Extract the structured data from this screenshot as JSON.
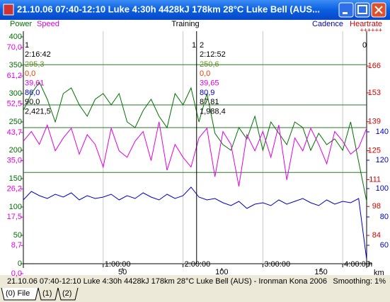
{
  "window": {
    "title": "21.10.06 07:40-12:10 Luke 4:30h 4428kJ 178km 28°C Luke Bell (AUS..."
  },
  "chart_data": {
    "type": "line",
    "title": "Training",
    "x": [
      0,
      0.1,
      0.2,
      0.3,
      0.4,
      0.5,
      0.6,
      0.7,
      0.8,
      0.9,
      1,
      1.1,
      1.2,
      1.3,
      1.4,
      1.5,
      1.6,
      1.7,
      1.8,
      1.9,
      2,
      2.1,
      2.2,
      2.3,
      2.4,
      2.5,
      2.6,
      2.7,
      2.8,
      2.9,
      3,
      3.1,
      3.2,
      3.3,
      3.4,
      3.5,
      3.6,
      3.7,
      3.8,
      3.9,
      4,
      4.1,
      4.2,
      4.3
    ],
    "series": [
      {
        "name": "Power",
        "color": "#007000",
        "axis": "y",
        "values": [
          270,
          300,
          320,
          290,
          250,
          300,
          310,
          280,
          260,
          290,
          300,
          280,
          300,
          250,
          240,
          270,
          290,
          260,
          240,
          300,
          280,
          310,
          250,
          300,
          230,
          210,
          200,
          240,
          220,
          260,
          200,
          250,
          230,
          210,
          250,
          240,
          200,
          230,
          210,
          220,
          200,
          250,
          180,
          110
        ]
      },
      {
        "name": "Speed",
        "color": "#e000e0",
        "axis": "y2",
        "values": [
          41,
          44,
          40,
          46,
          38,
          42,
          45,
          37,
          43,
          40,
          33,
          45,
          38,
          36,
          41,
          44,
          35,
          47,
          32,
          40,
          36,
          33,
          42,
          45,
          30,
          44,
          40,
          27,
          43,
          38,
          44,
          36,
          46,
          29,
          42,
          38,
          45,
          40,
          34,
          44,
          41,
          37,
          39,
          45
        ]
      },
      {
        "name": "Cadence",
        "color": "#0000c0",
        "axis": "y3",
        "values": [
          92,
          98,
          95,
          93,
          96,
          94,
          97,
          92,
          95,
          93,
          94,
          96,
          92,
          95,
          93,
          97,
          94,
          92,
          96,
          93,
          95,
          101,
          94,
          92,
          93,
          90,
          88,
          91,
          86,
          89,
          90,
          88,
          92,
          89,
          91,
          93,
          90,
          88,
          92,
          89,
          91,
          90,
          93,
          50
        ]
      }
    ],
    "y4label": "Heartrate",
    "y4mark": "++++++",
    "y4color": "#d00000",
    "xlim": [
      0,
      4.3
    ],
    "xticks": [
      {
        "value": 1,
        "label": "1:00:00"
      },
      {
        "value": 2,
        "label": "2:00:00"
      },
      {
        "value": 3,
        "label": "3:00:00"
      },
      {
        "value": 4,
        "label": "4:00:00"
      }
    ],
    "xunit": "h",
    "x2lim": [
      0,
      173
    ],
    "x2ticks": [
      50,
      100,
      150
    ],
    "x2unit": "km",
    "ylim": [
      0,
      400
    ],
    "yticks": [
      0,
      50,
      100,
      150,
      200,
      250,
      300,
      350,
      400
    ],
    "y2lim": [
      3.06,
      73.3
    ],
    "y2ticks": [
      {
        "value": 0,
        "label": "0,0"
      },
      {
        "value": 8.7,
        "label": "8,7"
      },
      {
        "value": 17.5,
        "label": "17,5"
      },
      {
        "value": 26.2,
        "label": "26,2"
      },
      {
        "value": 35,
        "label": "35,0"
      },
      {
        "value": 43.7,
        "label": "43,7"
      },
      {
        "value": 52.5,
        "label": "52,5"
      },
      {
        "value": 61.2,
        "label": "61,2"
      },
      {
        "value": 70,
        "label": "70,0"
      }
    ],
    "y3lim": [
      47,
      207
    ],
    "y3ticks": [
      60,
      80,
      100,
      120,
      140
    ],
    "y4lim": [
      70.3,
      180.1
    ],
    "y4ticks": [
      84,
      98,
      111,
      125,
      139,
      153,
      166
    ],
    "hlines": [
      351,
      280,
      240,
      161
    ],
    "lap_lines": [
      2.17
    ],
    "grid": true,
    "lap_tags": [
      "1",
      "1",
      "2",
      "0"
    ],
    "laps": [
      {
        "time": "2:16:42",
        "lines": [
          "295,3",
          "0,0",
          "39,61",
          "86,0",
          "90,0",
          "2,421,5"
        ]
      },
      {
        "time": "2:12:52",
        "lines": [
          "250,6",
          "0,0",
          "39,65",
          "80,9",
          "87,81",
          "1,988,4"
        ]
      }
    ]
  },
  "status_bar": {
    "text": "21.10.06 07:40-12:10 Luke 4:30h 4428kJ 178km 28°C Luke Bell (AUS) - Ironman Kona 2006",
    "smoothing": "Smoothing: 1%"
  },
  "tabs": [
    "(0) File",
    "(1)",
    "(2)"
  ]
}
